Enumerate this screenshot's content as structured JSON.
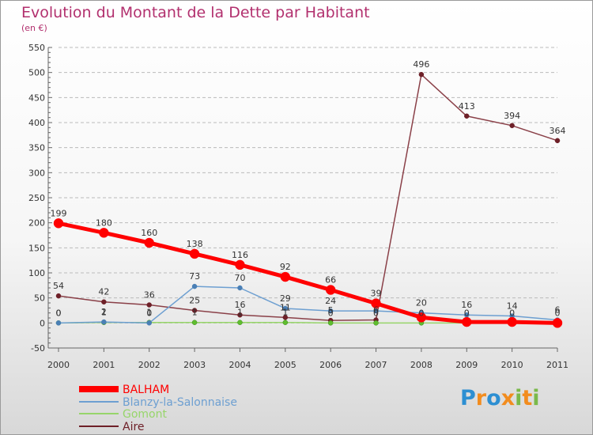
{
  "chart_data": {
    "type": "line",
    "title": "Evolution du Montant de la Dette par Habitant",
    "subtitle": "(en €)",
    "x": [
      "2000",
      "2001",
      "2002",
      "2003",
      "2004",
      "2005",
      "2006",
      "2007",
      "2008",
      "2009",
      "2010",
      "2011"
    ],
    "ylim": [
      -50,
      550
    ],
    "yticks": [
      -50,
      0,
      50,
      100,
      150,
      200,
      250,
      300,
      350,
      400,
      450,
      500,
      550
    ],
    "grid": "horizontal dashed",
    "legend_position": "bottom-left",
    "series": [
      {
        "name": "BALHAM",
        "color": "#ff0000",
        "values": [
          199,
          180,
          160,
          138,
          116,
          92,
          66,
          39,
          11,
          2,
          2,
          0
        ],
        "labels": [
          "199",
          "180",
          "160",
          "138",
          "116",
          "92",
          "66",
          "39",
          "",
          "",
          "",
          ""
        ]
      },
      {
        "name": "Blanzy-la-Salonnaise",
        "color": "#6d9fd1",
        "values": [
          0,
          2,
          0,
          73,
          70,
          29,
          24,
          24,
          20,
          16,
          14,
          6
        ],
        "labels": [
          "0",
          "2",
          "0",
          "73",
          "70",
          "29",
          "24",
          "",
          "20",
          "16",
          "14",
          "6"
        ]
      },
      {
        "name": "Gomont",
        "color": "#97d56a",
        "values": [
          0,
          1,
          1,
          1,
          1,
          1,
          0,
          0,
          0,
          0,
          0,
          0
        ],
        "labels": [
          "0",
          "1",
          "1",
          "1",
          "1",
          "1",
          "0",
          "0",
          "0",
          "0",
          "0",
          "0"
        ]
      },
      {
        "name": "Aire",
        "color": "#6e2028",
        "values": [
          54,
          42,
          36,
          25,
          16,
          11,
          5,
          6,
          496,
          413,
          394,
          364
        ],
        "labels": [
          "54",
          "42",
          "36",
          "25",
          "16",
          "11",
          "5",
          "6",
          "496",
          "413",
          "394",
          "364"
        ]
      }
    ]
  },
  "brand": {
    "letters": [
      "P",
      "r",
      "o",
      "x",
      "i",
      "t",
      "i"
    ],
    "colors": [
      "#2d8fd2",
      "#f28c1e",
      "#2d8fd2",
      "#f28c1e",
      "#7ab94a",
      "#f28c1e",
      "#7ab94a"
    ]
  }
}
